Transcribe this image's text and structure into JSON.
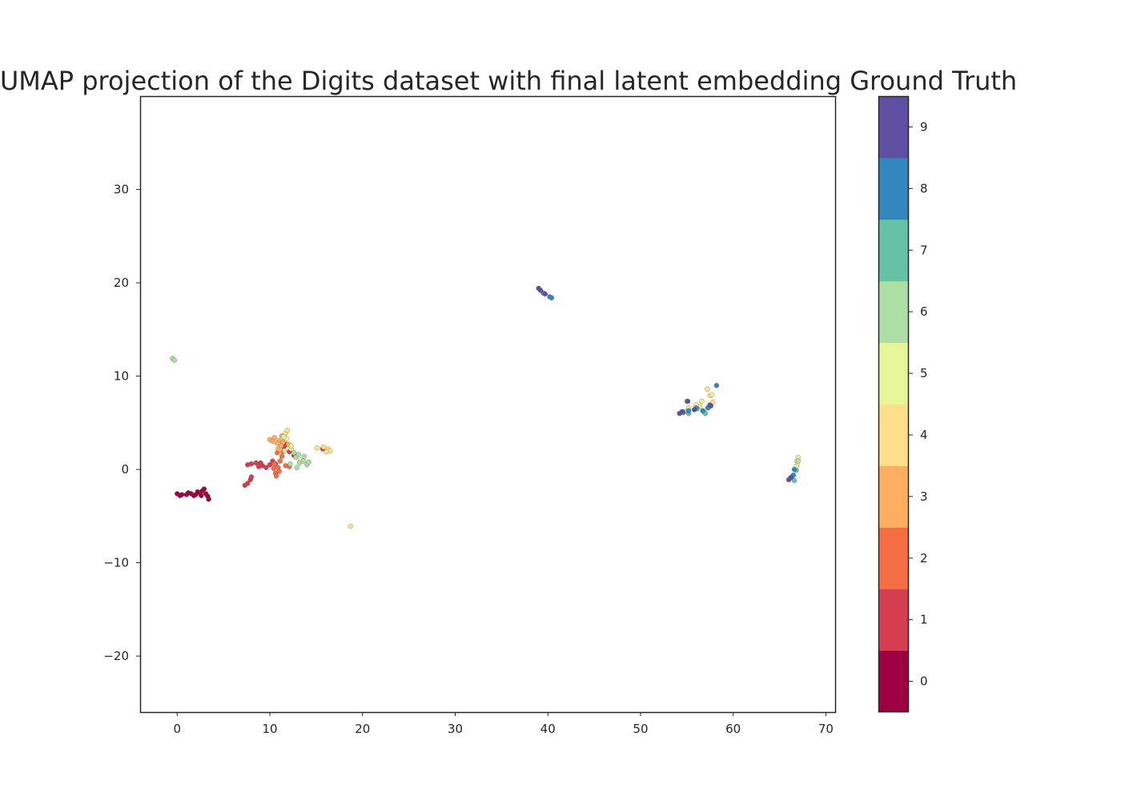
{
  "chart_data": {
    "type": "scatter",
    "title": "UMAP projection of the Digits dataset with final latent embedding Ground Truth",
    "xlabel": "",
    "ylabel": "",
    "xlim": [
      -4,
      71
    ],
    "ylim": [
      -26,
      40
    ],
    "xticks": [
      0,
      10,
      20,
      30,
      40,
      50,
      60,
      70
    ],
    "yticks": [
      -20,
      -10,
      0,
      10,
      20,
      30
    ],
    "grid": false,
    "colorbar": {
      "labels": [
        "0",
        "1",
        "2",
        "3",
        "4",
        "5",
        "6",
        "7",
        "8",
        "9"
      ],
      "colors": [
        "#9e0142",
        "#d53e4f",
        "#f46d43",
        "#fdae61",
        "#fee08b",
        "#e6f598",
        "#abdda4",
        "#66c2a5",
        "#3288bd",
        "#5e4fa2"
      ]
    },
    "tick_minus": "−",
    "clusters": [
      {
        "class": 0,
        "points": [
          [
            0.0,
            -2.6
          ],
          [
            0.5,
            -2.7
          ],
          [
            1.0,
            -2.7
          ],
          [
            1.5,
            -2.6
          ],
          [
            2.0,
            -2.7
          ],
          [
            2.4,
            -2.5
          ],
          [
            2.7,
            -2.3
          ],
          [
            2.9,
            -2.1
          ],
          [
            3.1,
            -2.6
          ],
          [
            3.3,
            -2.9
          ],
          [
            3.4,
            -3.2
          ],
          [
            1.2,
            -2.5
          ],
          [
            2.2,
            -2.4
          ],
          [
            0.3,
            -2.8
          ],
          [
            1.8,
            -2.8
          ],
          [
            2.6,
            -2.8
          ]
        ]
      },
      {
        "class": 1,
        "points": [
          [
            7.3,
            -1.7
          ],
          [
            7.6,
            -1.5
          ],
          [
            7.9,
            -1.1
          ],
          [
            8.0,
            -0.8
          ],
          [
            7.6,
            0.5
          ],
          [
            8.0,
            0.6
          ],
          [
            8.5,
            0.7
          ],
          [
            9.0,
            0.7
          ],
          [
            9.2,
            0.4
          ],
          [
            9.6,
            0.2
          ],
          [
            10.0,
            0.5
          ],
          [
            10.3,
            0.9
          ],
          [
            8.8,
            0.3
          ],
          [
            10.6,
            0.6
          ],
          [
            12.1,
            1.9
          ],
          [
            11.5,
            2.4
          ],
          [
            11.8,
            2.7
          ],
          [
            15.7,
            2.2
          ],
          [
            12.6,
            1.5
          ]
        ]
      },
      {
        "class": 2,
        "points": [
          [
            10.4,
            0.1
          ],
          [
            10.6,
            -0.4
          ],
          [
            10.7,
            -0.7
          ],
          [
            10.9,
            0.2
          ],
          [
            11.1,
            0.9
          ],
          [
            11.3,
            1.4
          ],
          [
            11.7,
            0.4
          ],
          [
            12.1,
            0.3
          ],
          [
            11.0,
            -0.2
          ],
          [
            10.8,
            1.8
          ],
          [
            11.4,
            1.9
          ],
          [
            10.5,
            0.6
          ]
        ]
      },
      {
        "class": 3,
        "points": [
          [
            10.0,
            3.2
          ],
          [
            10.5,
            3.4
          ],
          [
            11.0,
            3.1
          ],
          [
            11.4,
            2.9
          ],
          [
            11.2,
            2.5
          ],
          [
            10.9,
            2.2
          ],
          [
            11.6,
            3.3
          ],
          [
            10.3,
            3.0
          ],
          [
            10.8,
            2.8
          ],
          [
            12.0,
            2.7
          ],
          [
            11.3,
            3.6
          ]
        ]
      },
      {
        "class": 4,
        "points": [
          [
            15.1,
            2.3
          ],
          [
            15.8,
            2.4
          ],
          [
            16.3,
            2.2
          ],
          [
            16.5,
            2.0
          ],
          [
            16.1,
            1.9
          ],
          [
            18.7,
            -6.1
          ],
          [
            11.7,
            3.9
          ],
          [
            11.9,
            4.2
          ],
          [
            12.3,
            2.2
          ],
          [
            57.2,
            8.6
          ],
          [
            57.5,
            7.9
          ],
          [
            57.8,
            7.2
          ],
          [
            56.4,
            6.8
          ],
          [
            67.0,
            1.3
          ],
          [
            66.9,
            0.9
          ],
          [
            11.6,
            2.0
          ]
        ]
      },
      {
        "class": 5,
        "points": [
          [
            11.8,
            3.3
          ],
          [
            11.5,
            3.5
          ],
          [
            12.3,
            2.5
          ],
          [
            13.3,
            1.0
          ],
          [
            55.2,
            6.6
          ],
          [
            56.0,
            6.9
          ],
          [
            56.6,
            7.3
          ],
          [
            57.2,
            6.6
          ],
          [
            57.7,
            8.0
          ],
          [
            57.4,
            6.9
          ],
          [
            66.9,
            0.5
          ],
          [
            66.8,
            0.3
          ]
        ]
      },
      {
        "class": 6,
        "points": [
          [
            -0.5,
            11.9
          ],
          [
            -0.3,
            11.7
          ],
          [
            12.8,
            1.3
          ],
          [
            13.2,
            0.7
          ],
          [
            13.6,
            0.9
          ],
          [
            14.0,
            0.5
          ],
          [
            12.9,
            0.2
          ],
          [
            12.6,
            1.8
          ],
          [
            13.7,
            1.4
          ],
          [
            12.2,
            0.6
          ],
          [
            14.2,
            0.8
          ],
          [
            54.9,
            6.2
          ],
          [
            67.0,
            0.9
          ],
          [
            13.1,
            1.6
          ]
        ]
      },
      {
        "class": 7,
        "points": [
          [
            55.0,
            7.3
          ],
          [
            55.2,
            6.0
          ],
          [
            56.8,
            6.2
          ],
          [
            57.0,
            6.0
          ],
          [
            66.8,
            -0.1
          ],
          [
            66.6,
            -1.2
          ],
          [
            56.1,
            6.5
          ]
        ]
      },
      {
        "class": 8,
        "points": [
          [
            39.5,
            18.9
          ],
          [
            40.2,
            18.5
          ],
          [
            40.4,
            18.4
          ],
          [
            58.2,
            9.0
          ],
          [
            57.6,
            6.8
          ],
          [
            57.3,
            6.6
          ],
          [
            56.7,
            6.3
          ],
          [
            56.0,
            6.6
          ],
          [
            55.2,
            6.3
          ],
          [
            66.6,
            0.0
          ],
          [
            66.5,
            -0.6
          ],
          [
            66.3,
            -0.8
          ],
          [
            54.6,
            6.1
          ]
        ]
      },
      {
        "class": 9,
        "points": [
          [
            39.0,
            19.4
          ],
          [
            39.2,
            19.2
          ],
          [
            39.7,
            18.8
          ],
          [
            54.2,
            6.0
          ],
          [
            54.5,
            6.2
          ],
          [
            55.1,
            7.3
          ],
          [
            57.5,
            6.9
          ],
          [
            66.0,
            -1.1
          ],
          [
            66.2,
            -0.9
          ],
          [
            55.8,
            6.4
          ]
        ]
      }
    ]
  }
}
